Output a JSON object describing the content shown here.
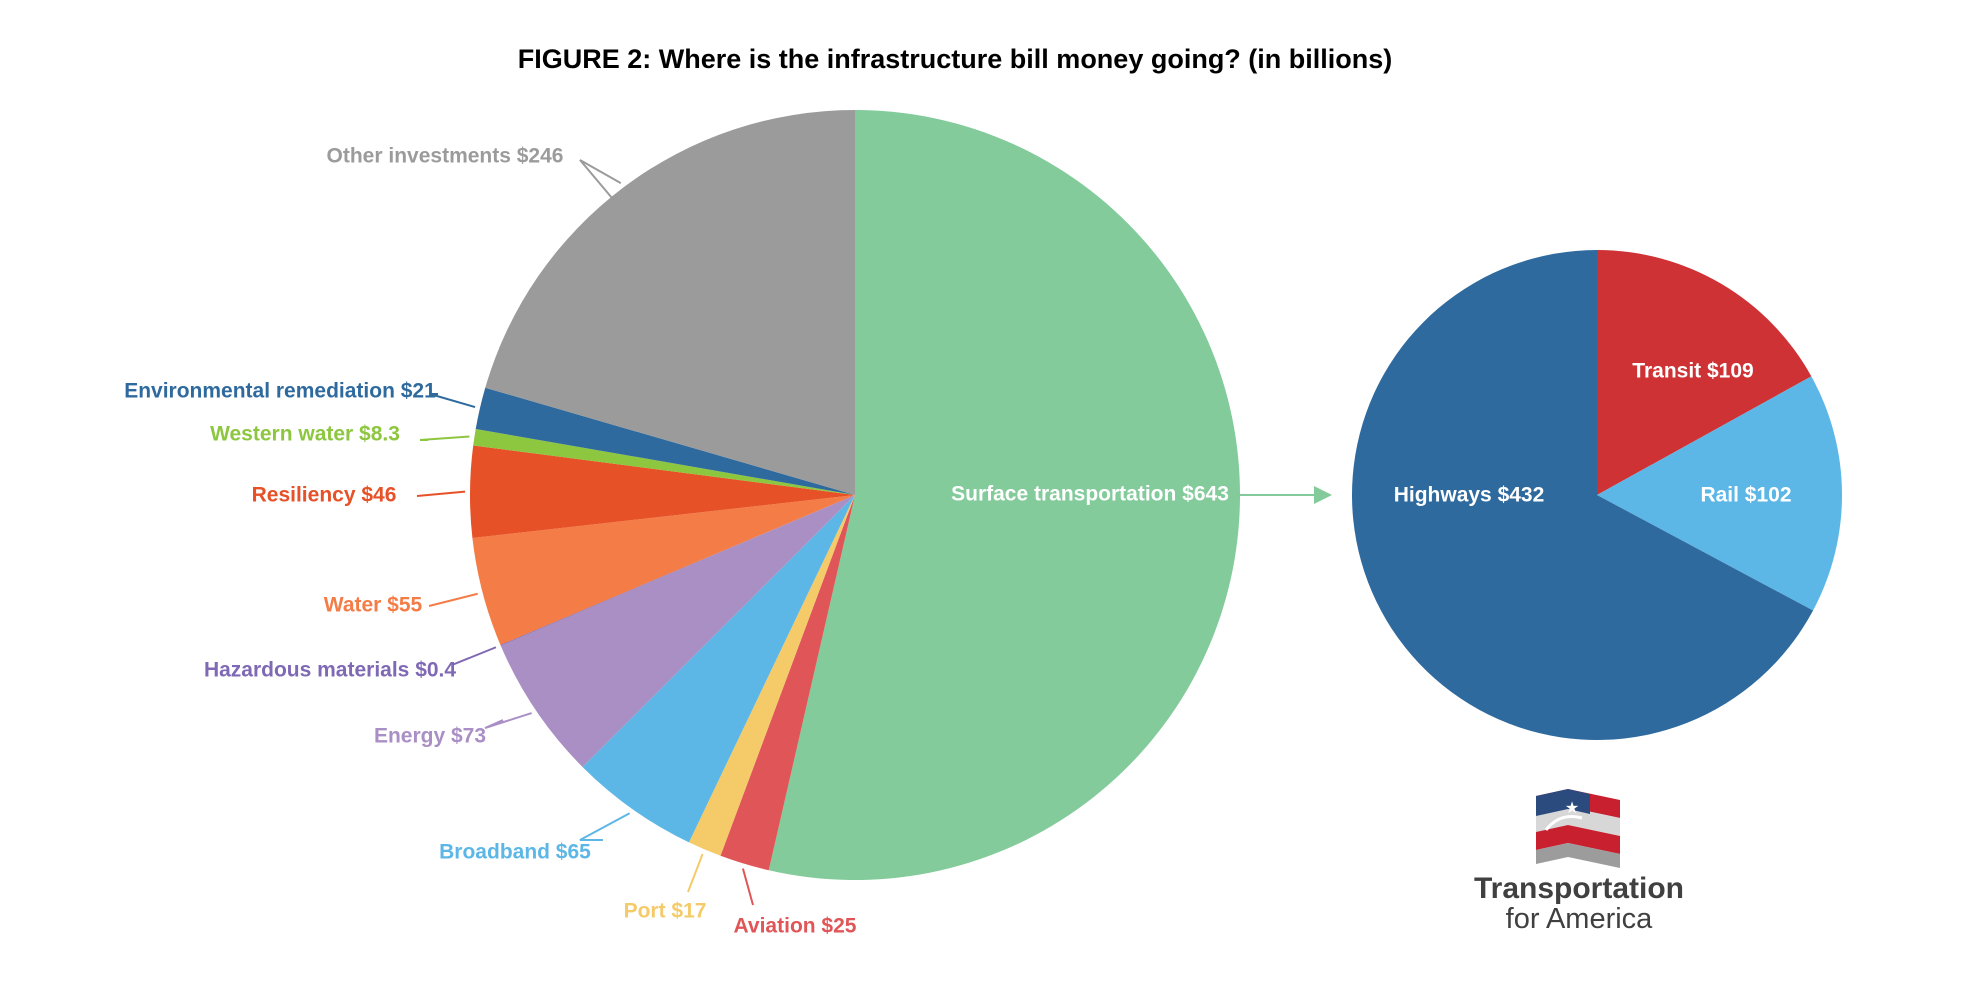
{
  "chart_data": [
    {
      "type": "pie",
      "title": "FIGURE 2: Where is the infrastructure bill money going? (in billions)",
      "slices": [
        {
          "label": "Surface transportation $643",
          "value": 643,
          "color": "#83CB9B"
        },
        {
          "label": "Aviation $25",
          "value": 25,
          "color": "#E05658"
        },
        {
          "label": "Port $17",
          "value": 17,
          "color": "#F5CB6A"
        },
        {
          "label": "Broadband $65",
          "value": 65,
          "color": "#5DB7E6"
        },
        {
          "label": "Energy $73",
          "value": 73,
          "color": "#A98FC4"
        },
        {
          "label": "Hazardous materials $0.4",
          "value": 0.4,
          "color": "#7F68B4"
        },
        {
          "label": "Water $55",
          "value": 55,
          "color": "#F47C46"
        },
        {
          "label": "Resiliency $46",
          "value": 46,
          "color": "#E65127"
        },
        {
          "label": "Western water $8.3",
          "value": 8.3,
          "color": "#8DC63F"
        },
        {
          "label": "Environmental remediation $21",
          "value": 21,
          "color": "#2F6A9E"
        },
        {
          "label": "Other investments $246",
          "value": 246,
          "color": "#9B9B9B"
        }
      ]
    },
    {
      "type": "pie",
      "slices": [
        {
          "label": "Transit $109",
          "value": 109,
          "color": "#CE3235"
        },
        {
          "label": "Rail $102",
          "value": 102,
          "color": "#5DB7E6"
        },
        {
          "label": "Highways $432",
          "value": 432,
          "color": "#2F6A9E"
        }
      ]
    }
  ],
  "logo": {
    "line1": "Transportation",
    "line2": "for America"
  }
}
